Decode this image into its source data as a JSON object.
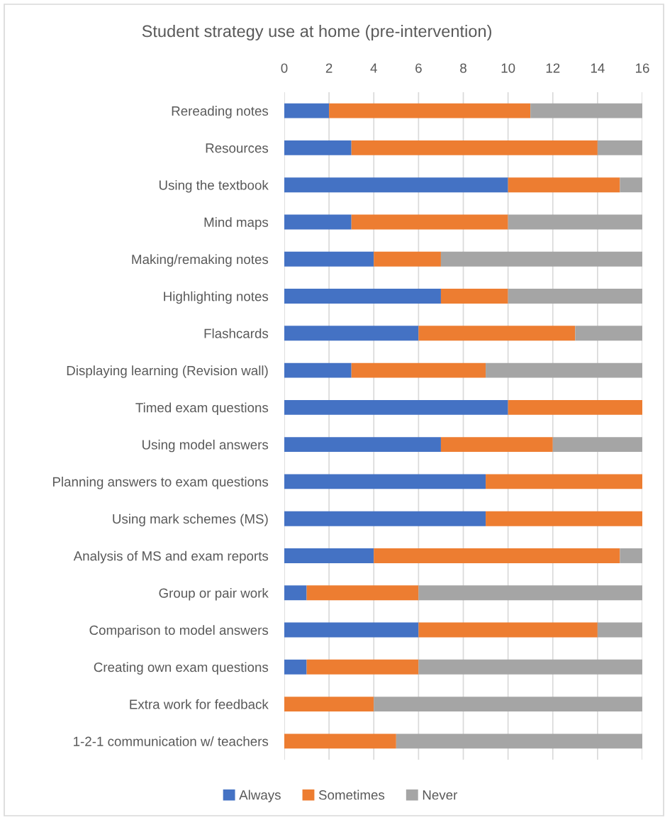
{
  "chart_data": {
    "type": "bar",
    "orientation": "horizontal",
    "stacked": true,
    "title": "Student strategy use at home (pre-intervention)",
    "categories": [
      "Rereading notes",
      "Resources",
      "Using the textbook",
      "Mind maps",
      "Making/remaking notes",
      "Highlighting notes",
      "Flashcards",
      "Displaying learning (Revision wall)",
      "Timed exam questions",
      "Using model answers",
      "Planning answers to exam questions",
      "Using mark schemes (MS)",
      "Analysis of MS and exam reports",
      "Group or pair work",
      "Comparison to model answers",
      "Creating own exam questions",
      "Extra work for feedback",
      "1-2-1 communication w/ teachers"
    ],
    "series": [
      {
        "name": "Always",
        "color": "#4472c4",
        "values": [
          2,
          3,
          10,
          3,
          4,
          7,
          6,
          3,
          10,
          7,
          9,
          9,
          4,
          1,
          6,
          1,
          0,
          0
        ]
      },
      {
        "name": "Sometimes",
        "color": "#ed7d31",
        "values": [
          9,
          11,
          5,
          7,
          3,
          3,
          7,
          6,
          6,
          5,
          7,
          7,
          11,
          5,
          8,
          5,
          4,
          5
        ]
      },
      {
        "name": "Never",
        "color": "#a5a5a5",
        "values": [
          5,
          2,
          1,
          6,
          9,
          6,
          3,
          7,
          0,
          4,
          0,
          0,
          1,
          10,
          2,
          10,
          12,
          11
        ]
      }
    ],
    "xlim": [
      0,
      16
    ],
    "xticks": [
      0,
      2,
      4,
      6,
      8,
      10,
      12,
      14,
      16
    ],
    "grid": "x",
    "legend": "bottom"
  }
}
